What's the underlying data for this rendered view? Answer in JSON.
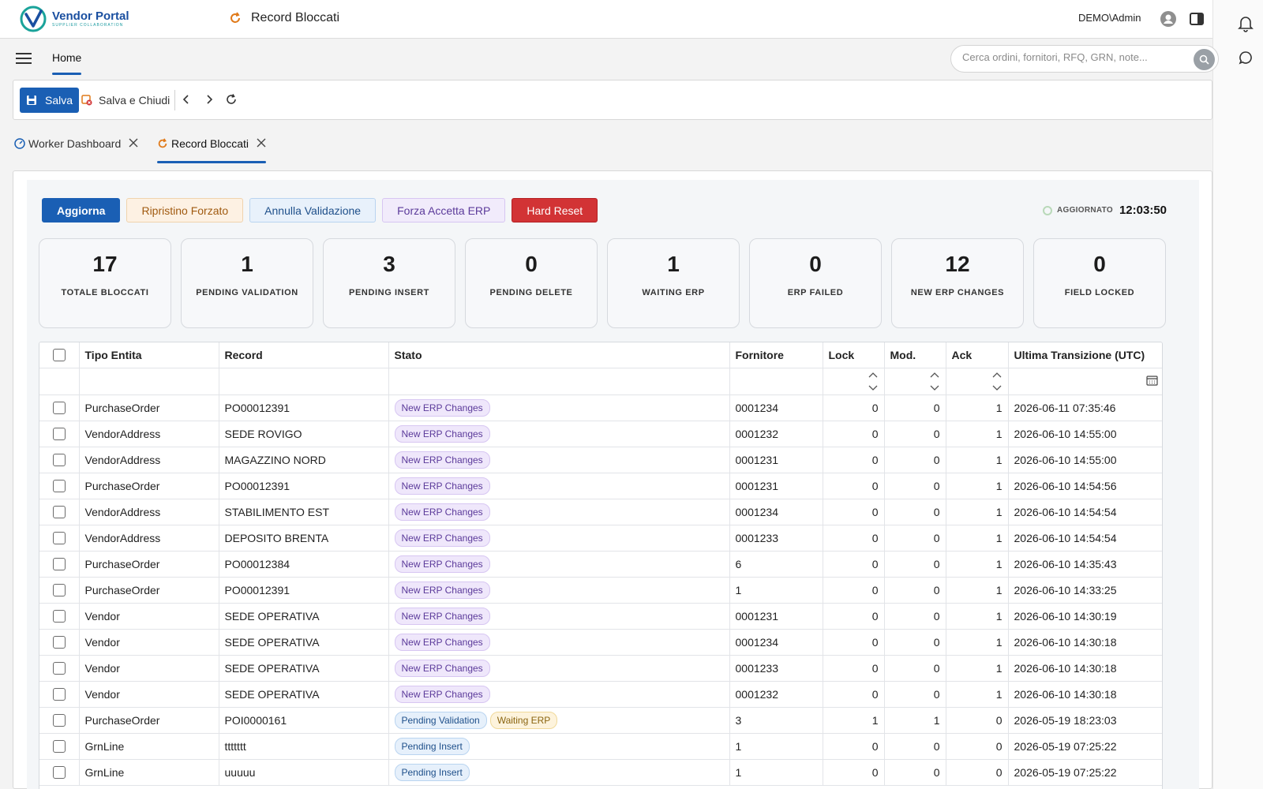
{
  "app": {
    "logo_title": "Vendor Portal",
    "logo_subtitle": "SUPPLIER COLLABORATION",
    "page_title": "Record Bloccati",
    "user": "DEMO\\Admin"
  },
  "nav": {
    "home_label": "Home",
    "search_placeholder": "Cerca ordini, fornitori, RFQ, GRN, note..."
  },
  "toolbar": {
    "save_label": "Salva",
    "save_close_label": "Salva e Chiudi"
  },
  "doc_tabs": [
    {
      "label": "Worker Dashboard"
    },
    {
      "label": "Record Bloccati"
    }
  ],
  "actions": {
    "refresh": "Aggiorna",
    "force_restore": "Ripristino Forzato",
    "cancel_validation": "Annulla Validazione",
    "force_accept_erp": "Forza Accetta ERP",
    "hard_reset": "Hard Reset"
  },
  "updated": {
    "label": "AGGIORNATO",
    "time": "12:03:50"
  },
  "stats": [
    {
      "value": "17",
      "label": "TOTALE BLOCCATI"
    },
    {
      "value": "1",
      "label": "PENDING VALIDATION"
    },
    {
      "value": "3",
      "label": "PENDING INSERT"
    },
    {
      "value": "0",
      "label": "PENDING DELETE"
    },
    {
      "value": "1",
      "label": "WAITING ERP"
    },
    {
      "value": "0",
      "label": "ERP FAILED"
    },
    {
      "value": "12",
      "label": "NEW ERP CHANGES"
    },
    {
      "value": "0",
      "label": "FIELD LOCKED"
    }
  ],
  "table": {
    "columns": [
      "Tipo Entita",
      "Record",
      "Stato",
      "Fornitore",
      "Lock",
      "Mod.",
      "Ack",
      "Ultima Transizione (UTC)"
    ],
    "rows": [
      {
        "tipo": "PurchaseOrder",
        "record": "PO00012391",
        "stato": [
          "New ERP Changes"
        ],
        "fornitore": "0001234",
        "lock": "0",
        "mod": "0",
        "ack": "1",
        "ts": "2026-06-11 07:35:46"
      },
      {
        "tipo": "VendorAddress",
        "record": "SEDE ROVIGO",
        "stato": [
          "New ERP Changes"
        ],
        "fornitore": "0001232",
        "lock": "0",
        "mod": "0",
        "ack": "1",
        "ts": "2026-06-10 14:55:00"
      },
      {
        "tipo": "VendorAddress",
        "record": "MAGAZZINO NORD",
        "stato": [
          "New ERP Changes"
        ],
        "fornitore": "0001231",
        "lock": "0",
        "mod": "0",
        "ack": "1",
        "ts": "2026-06-10 14:55:00"
      },
      {
        "tipo": "PurchaseOrder",
        "record": "PO00012391",
        "stato": [
          "New ERP Changes"
        ],
        "fornitore": "0001231",
        "lock": "0",
        "mod": "0",
        "ack": "1",
        "ts": "2026-06-10 14:54:56"
      },
      {
        "tipo": "VendorAddress",
        "record": "STABILIMENTO EST",
        "stato": [
          "New ERP Changes"
        ],
        "fornitore": "0001234",
        "lock": "0",
        "mod": "0",
        "ack": "1",
        "ts": "2026-06-10 14:54:54"
      },
      {
        "tipo": "VendorAddress",
        "record": "DEPOSITO BRENTA",
        "stato": [
          "New ERP Changes"
        ],
        "fornitore": "0001233",
        "lock": "0",
        "mod": "0",
        "ack": "1",
        "ts": "2026-06-10 14:54:54"
      },
      {
        "tipo": "PurchaseOrder",
        "record": "PO00012384",
        "stato": [
          "New ERP Changes"
        ],
        "fornitore": "6",
        "lock": "0",
        "mod": "0",
        "ack": "1",
        "ts": "2026-06-10 14:35:43"
      },
      {
        "tipo": "PurchaseOrder",
        "record": "PO00012391",
        "stato": [
          "New ERP Changes"
        ],
        "fornitore": "1",
        "lock": "0",
        "mod": "0",
        "ack": "1",
        "ts": "2026-06-10 14:33:25"
      },
      {
        "tipo": "Vendor",
        "record": "SEDE OPERATIVA",
        "stato": [
          "New ERP Changes"
        ],
        "fornitore": "0001231",
        "lock": "0",
        "mod": "0",
        "ack": "1",
        "ts": "2026-06-10 14:30:19"
      },
      {
        "tipo": "Vendor",
        "record": "SEDE OPERATIVA",
        "stato": [
          "New ERP Changes"
        ],
        "fornitore": "0001234",
        "lock": "0",
        "mod": "0",
        "ack": "1",
        "ts": "2026-06-10 14:30:18"
      },
      {
        "tipo": "Vendor",
        "record": "SEDE OPERATIVA",
        "stato": [
          "New ERP Changes"
        ],
        "fornitore": "0001233",
        "lock": "0",
        "mod": "0",
        "ack": "1",
        "ts": "2026-06-10 14:30:18"
      },
      {
        "tipo": "Vendor",
        "record": "SEDE OPERATIVA",
        "stato": [
          "New ERP Changes"
        ],
        "fornitore": "0001232",
        "lock": "0",
        "mod": "0",
        "ack": "1",
        "ts": "2026-06-10 14:30:18"
      },
      {
        "tipo": "PurchaseOrder",
        "record": "POI0000161",
        "stato": [
          "Pending Validation",
          "Waiting ERP"
        ],
        "fornitore": "3",
        "lock": "1",
        "mod": "1",
        "ack": "0",
        "ts": "2026-05-19 18:23:03"
      },
      {
        "tipo": "GrnLine",
        "record": "ttttttt",
        "stato": [
          "Pending Insert"
        ],
        "fornitore": "1",
        "lock": "0",
        "mod": "0",
        "ack": "0",
        "ts": "2026-05-19 07:25:22"
      },
      {
        "tipo": "GrnLine",
        "record": "uuuuu",
        "stato": [
          "Pending Insert"
        ],
        "fornitore": "1",
        "lock": "0",
        "mod": "0",
        "ack": "0",
        "ts": "2026-05-19 07:25:22"
      }
    ]
  },
  "colors": {
    "primary": "#1a5fb4",
    "danger": "#d23335"
  }
}
